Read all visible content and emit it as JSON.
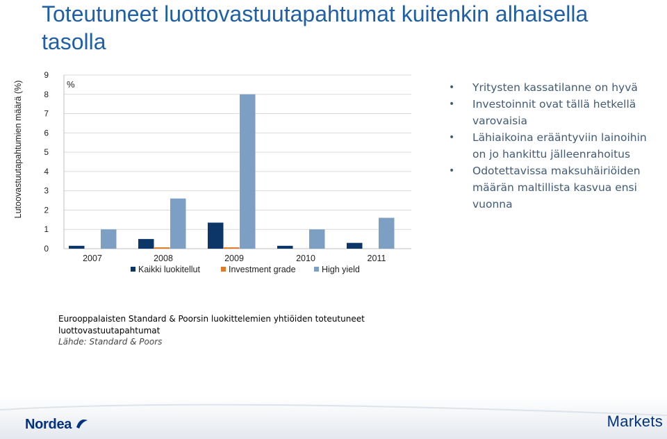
{
  "title": "Toteutuneet luottovastuutapahtumat kuitenkin alhaisella tasolla",
  "bullets": [
    "Yritysten kassatilanne on hyvä",
    "Investoinnit ovat tällä hetkellä varovaisia",
    "Lähiaikoina erääntyviin lainoihin on jo hankittu jälleenrahoitus",
    "Odotettavissa maksuhäiriöiden määrän maltillista kasvua ensi vuonna"
  ],
  "caption": {
    "text": "Eurooppalaisten Standard & Poorsin luokittelemien yhtiöiden toteutuneet luottovastuutapahtumat",
    "source": "Lähde: Standard & Poors"
  },
  "footer": {
    "left_logo": "Nordea",
    "right_logo": "Markets",
    "logo_color": "#00337f"
  },
  "chart_data": {
    "type": "bar",
    "ylabel": "Lutoovastuutapahtumien määrä (%)",
    "unit_label": "%",
    "xlabel": "",
    "ylim": [
      0,
      9
    ],
    "yticks": [
      0,
      1,
      2,
      3,
      4,
      5,
      6,
      7,
      8,
      9
    ],
    "categories": [
      "2007",
      "2008",
      "2009",
      "2010",
      "2011"
    ],
    "legend_position": "bottom",
    "grid": true,
    "series": [
      {
        "name": "Kaikki luokitellut",
        "color": "#0b3667",
        "values": [
          0.15,
          0.5,
          1.35,
          0.15,
          0.3
        ]
      },
      {
        "name": "Investment grade",
        "color": "#e07b2a",
        "values": [
          0.0,
          0.07,
          0.07,
          0.0,
          0.0
        ]
      },
      {
        "name": "High yield",
        "color": "#7c9fc3",
        "values": [
          1.0,
          2.6,
          8.0,
          1.0,
          1.6
        ]
      }
    ]
  }
}
